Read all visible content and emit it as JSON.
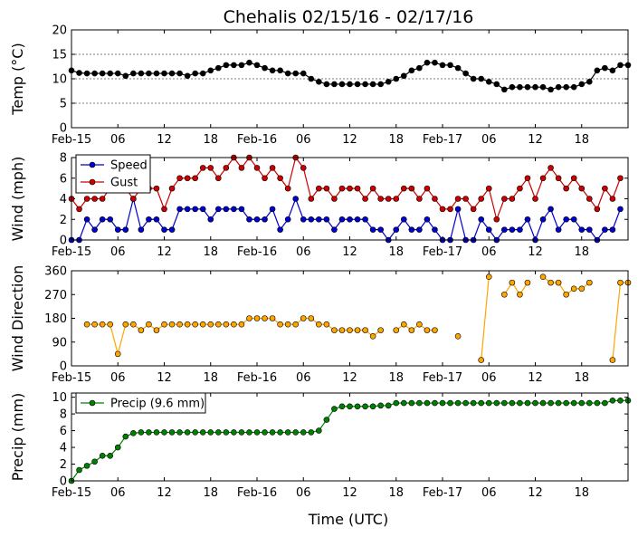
{
  "title": "Chehalis 02/15/16 - 02/17/16",
  "xlabel": "Time (UTC)",
  "x_ticks": [
    {
      "h": 0,
      "label": "Feb-15"
    },
    {
      "h": 6,
      "label": "06"
    },
    {
      "h": 12,
      "label": "12"
    },
    {
      "h": 18,
      "label": "18"
    },
    {
      "h": 24,
      "label": "Feb-16"
    },
    {
      "h": 30,
      "label": "06"
    },
    {
      "h": 36,
      "label": "12"
    },
    {
      "h": 42,
      "label": "18"
    },
    {
      "h": 48,
      "label": "Feb-17"
    },
    {
      "h": 54,
      "label": "06"
    },
    {
      "h": 60,
      "label": "12"
    },
    {
      "h": 66,
      "label": "18"
    }
  ],
  "chart_data": [
    {
      "type": "line",
      "ylabel": "Temp (°C)",
      "ylim": [
        0,
        20
      ],
      "yticks": [
        0,
        5,
        10,
        15,
        20
      ],
      "xlim_hours": [
        0,
        72
      ],
      "grid": "horizontal dashed",
      "series": [
        {
          "color": "#000000",
          "interval_hours": 1,
          "values": [
            11.7,
            11.2,
            11.1,
            11.1,
            11.1,
            11.1,
            11.1,
            10.6,
            11.1,
            11.1,
            11.1,
            11.1,
            11.1,
            11.1,
            11.1,
            10.6,
            11.1,
            11.1,
            11.7,
            12.2,
            12.8,
            12.8,
            12.8,
            13.3,
            12.8,
            12.2,
            11.7,
            11.7,
            11.1,
            11.1,
            11.1,
            10.0,
            9.4,
            8.9,
            8.9,
            8.9,
            8.9,
            8.9,
            8.9,
            8.9,
            8.9,
            9.4,
            10.0,
            10.6,
            11.7,
            12.2,
            13.3,
            13.3,
            12.8,
            12.8,
            12.2,
            11.1,
            10.0,
            10.0,
            9.4,
            8.9,
            7.8,
            8.3,
            8.3,
            8.3,
            8.3,
            8.3,
            7.8,
            8.3,
            8.3,
            8.3,
            8.9,
            9.4,
            11.7,
            12.2,
            11.7,
            12.8,
            12.8
          ]
        }
      ]
    },
    {
      "type": "line",
      "ylabel": "Wind (mph)",
      "ylim": [
        0,
        8
      ],
      "yticks": [
        0,
        2,
        4,
        6,
        8
      ],
      "xlim_hours": [
        0,
        72
      ],
      "legend": "top-left",
      "series": [
        {
          "name": "Speed",
          "color": "#0000cc",
          "interval_hours": 1,
          "values": [
            0,
            0,
            2,
            1,
            2,
            2,
            1,
            1,
            4,
            1,
            2,
            2,
            1,
            1,
            3,
            3,
            3,
            3,
            2,
            3,
            3,
            3,
            3,
            2,
            2,
            2,
            3,
            1,
            2,
            4,
            2,
            2,
            2,
            2,
            1,
            2,
            2,
            2,
            2,
            1,
            1,
            0,
            1,
            2,
            1,
            1,
            2,
            1,
            0,
            0,
            3,
            0,
            0,
            2,
            1,
            0,
            1,
            1,
            1,
            2,
            0,
            2,
            3,
            1,
            2,
            2,
            1,
            1,
            0,
            1,
            1,
            3
          ]
        },
        {
          "name": "Gust",
          "color": "#cc0000",
          "interval_hours": 1,
          "values": [
            4,
            3,
            4,
            4,
            4,
            5,
            5,
            5,
            4,
            5,
            5,
            5,
            3,
            5,
            6,
            6,
            6,
            7,
            7,
            6,
            7,
            8,
            7,
            8,
            7,
            6,
            7,
            6,
            5,
            8,
            7,
            4,
            5,
            5,
            4,
            5,
            5,
            5,
            4,
            5,
            4,
            4,
            4,
            5,
            5,
            4,
            5,
            4,
            3,
            3,
            4,
            4,
            3,
            4,
            5,
            2,
            4,
            4,
            5,
            6,
            4,
            6,
            7,
            6,
            5,
            6,
            5,
            4,
            3,
            5,
            4,
            6
          ]
        }
      ]
    },
    {
      "type": "scatter",
      "ylabel": "Wind Direction",
      "ylim": [
        0,
        360
      ],
      "yticks": [
        0,
        90,
        180,
        270,
        360
      ],
      "xlim_hours": [
        0,
        72
      ],
      "series": [
        {
          "color": "#ffa500",
          "interval_hours": 1,
          "values": [
            null,
            null,
            157,
            157,
            157,
            157,
            45,
            157,
            157,
            135,
            157,
            135,
            157,
            157,
            157,
            157,
            157,
            157,
            157,
            157,
            157,
            157,
            157,
            180,
            180,
            180,
            180,
            157,
            157,
            157,
            180,
            180,
            157,
            157,
            135,
            135,
            135,
            135,
            135,
            112,
            135,
            null,
            135,
            157,
            135,
            157,
            135,
            135,
            null,
            null,
            112,
            null,
            null,
            22,
            337,
            null,
            270,
            315,
            270,
            315,
            null,
            337,
            315,
            315,
            270,
            292,
            292,
            315,
            null,
            null,
            22,
            315,
            315
          ]
        }
      ]
    },
    {
      "type": "line",
      "ylabel": "Precip (mm)",
      "ylim": [
        0,
        10.5
      ],
      "yticks": [
        0,
        2,
        4,
        6,
        8,
        10
      ],
      "xlim_hours": [
        0,
        72
      ],
      "legend": "top-left",
      "series": [
        {
          "name": "Precip (9.6 mm)",
          "color": "#008000",
          "interval_hours": 1,
          "values": [
            0,
            1.3,
            1.8,
            2.3,
            3.0,
            3.0,
            4.0,
            5.3,
            5.7,
            5.8,
            5.8,
            5.8,
            5.8,
            5.8,
            5.8,
            5.8,
            5.8,
            5.8,
            5.8,
            5.8,
            5.8,
            5.8,
            5.8,
            5.8,
            5.8,
            5.8,
            5.8,
            5.8,
            5.8,
            5.8,
            5.8,
            5.8,
            6.0,
            7.3,
            8.6,
            8.9,
            8.9,
            8.9,
            8.9,
            8.9,
            9.0,
            9.0,
            9.3,
            9.3,
            9.3,
            9.3,
            9.3,
            9.3,
            9.3,
            9.3,
            9.3,
            9.3,
            9.3,
            9.3,
            9.3,
            9.3,
            9.3,
            9.3,
            9.3,
            9.3,
            9.3,
            9.3,
            9.3,
            9.3,
            9.3,
            9.3,
            9.3,
            9.3,
            9.3,
            9.3,
            9.6,
            9.6,
            9.6
          ]
        }
      ]
    }
  ]
}
